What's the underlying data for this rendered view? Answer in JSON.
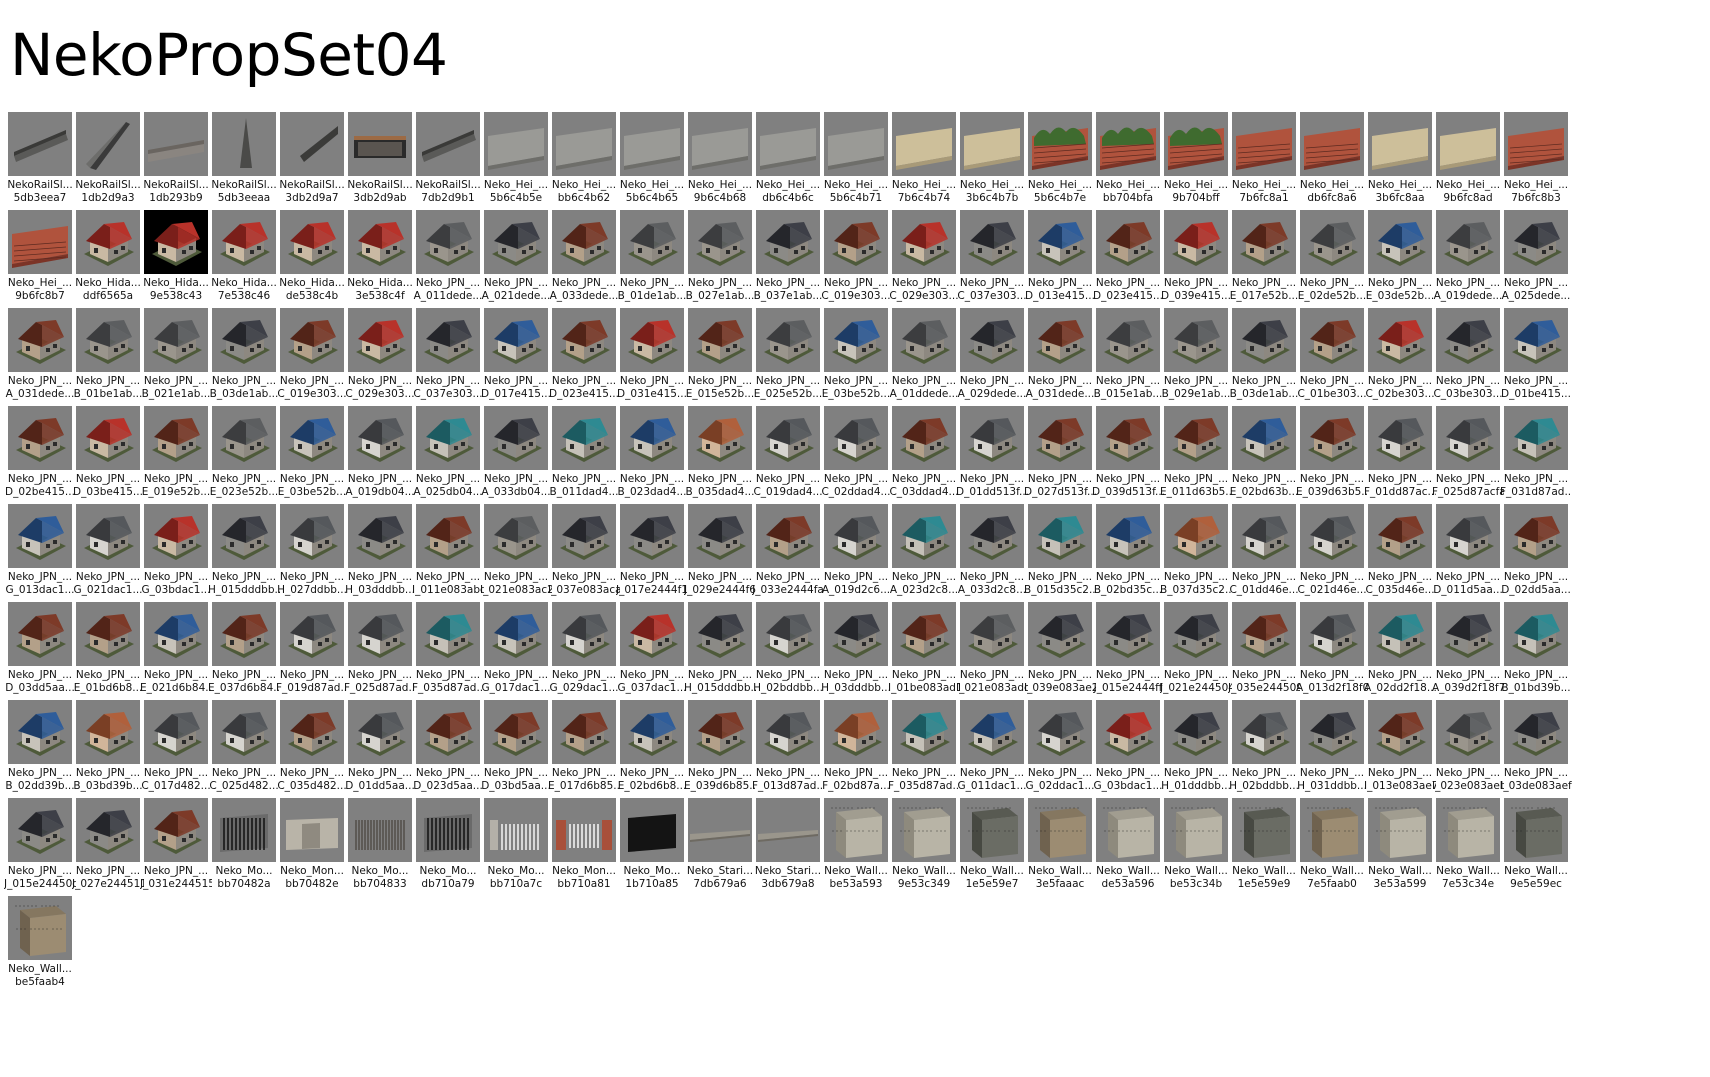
{
  "title": "NekoPropSet04",
  "colors": {
    "thumb_bg": "#808080",
    "label_text": "#111111",
    "page_bg": "#ffffff"
  },
  "items": [
    {
      "name": "NekoRailSl...",
      "id": "5db3eea7",
      "icon": "rail-slope"
    },
    {
      "name": "NekoRailSl...",
      "id": "1db2d9a3",
      "icon": "rail-slope"
    },
    {
      "name": "NekoRailSl...",
      "id": "1db293b9",
      "icon": "rail-slope"
    },
    {
      "name": "NekoRailSl...",
      "id": "5db3eeaa",
      "icon": "rail-slope"
    },
    {
      "name": "NekoRailSl...",
      "id": "3db2d9a7",
      "icon": "rail-slope"
    },
    {
      "name": "NekoRailSl...",
      "id": "3db2d9ab",
      "icon": "rail-slope"
    },
    {
      "name": "NekoRailSl...",
      "id": "7db2d9b1",
      "icon": "rail-slope"
    },
    {
      "name": "Neko_Hei_...",
      "id": "5b6c4b5e",
      "icon": "wall-concrete"
    },
    {
      "name": "Neko_Hei_...",
      "id": "bb6c4b62",
      "icon": "wall-concrete"
    },
    {
      "name": "Neko_Hei_...",
      "id": "5b6c4b65",
      "icon": "wall-concrete"
    },
    {
      "name": "Neko_Hei_...",
      "id": "9b6c4b68",
      "icon": "wall-concrete"
    },
    {
      "name": "Neko_Hei_...",
      "id": "db6c4b6c",
      "icon": "wall-concrete"
    },
    {
      "name": "Neko_Hei_...",
      "id": "5b6c4b71",
      "icon": "wall-concrete"
    },
    {
      "name": "Neko_Hei_...",
      "id": "7b6c4b74",
      "icon": "wall-stone"
    },
    {
      "name": "Neko_Hei_...",
      "id": "3b6c4b7b",
      "icon": "wall-stone"
    },
    {
      "name": "Neko_Hei_...",
      "id": "5b6c4b7e",
      "icon": "wall-hedge"
    },
    {
      "name": "Neko_Hei_...",
      "id": "bb704bfa",
      "icon": "wall-hedge"
    },
    {
      "name": "Neko_Hei_...",
      "id": "9b704bff",
      "icon": "wall-hedge"
    },
    {
      "name": "Neko_Hei_...",
      "id": "7b6fc8a1",
      "icon": "wall-brick"
    },
    {
      "name": "Neko_Hei_...",
      "id": "db6fc8a6",
      "icon": "wall-brick"
    },
    {
      "name": "Neko_Hei_...",
      "id": "3b6fc8aa",
      "icon": "wall-stone"
    },
    {
      "name": "Neko_Hei_...",
      "id": "9b6fc8ad",
      "icon": "wall-stone"
    },
    {
      "name": "Neko_Hei_...",
      "id": "7b6fc8b3",
      "icon": "wall-brick"
    },
    {
      "name": "Neko_Hei_...",
      "id": "9b6fc8b7",
      "icon": "wall-brick"
    },
    {
      "name": "Neko_Hida...",
      "id": "ddf6565a",
      "icon": "house-red"
    },
    {
      "name": "Neko_Hida...",
      "id": "9e538c43",
      "icon": "house-red"
    },
    {
      "name": "Neko_Hida...",
      "id": "7e538c46",
      "icon": "house-red"
    },
    {
      "name": "Neko_Hida...",
      "id": "de538c4b",
      "icon": "house-red"
    },
    {
      "name": "Neko_Hida...",
      "id": "3e538c4f",
      "icon": "house-red"
    },
    {
      "name": "Neko_JPN_...",
      "id": "A_011dede...",
      "icon": "house-grey"
    },
    {
      "name": "Neko_JPN_...",
      "id": "A_021dede...",
      "icon": "house-dark"
    },
    {
      "name": "Neko_JPN_...",
      "id": "A_033dede...",
      "icon": "house-brown"
    },
    {
      "name": "Neko_JPN_...",
      "id": "B_01de1ab...",
      "icon": "house-grey"
    },
    {
      "name": "Neko_JPN_...",
      "id": "B_027e1ab...",
      "icon": "house-grey"
    },
    {
      "name": "Neko_JPN_...",
      "id": "B_037e1ab...",
      "icon": "house-dark"
    },
    {
      "name": "Neko_JPN_...",
      "id": "C_019e303...",
      "icon": "house-brown"
    },
    {
      "name": "Neko_JPN_...",
      "id": "C_029e303...",
      "icon": "house-red"
    },
    {
      "name": "Neko_JPN_...",
      "id": "C_037e303...",
      "icon": "house-dark"
    },
    {
      "name": "Neko_JPN_...",
      "id": "D_013e415...",
      "icon": "house-blue"
    },
    {
      "name": "Neko_JPN_...",
      "id": "D_023e415...",
      "icon": "house-brown"
    },
    {
      "name": "Neko_JPN_...",
      "id": "D_039e415...",
      "icon": "house-red"
    },
    {
      "name": "Neko_JPN_...",
      "id": "E_017e52b...",
      "icon": "house-brown"
    },
    {
      "name": "Neko_JPN_...",
      "id": "E_02de52b...",
      "icon": "house-grey"
    },
    {
      "name": "Neko_JPN_...",
      "id": "E_03de52b...",
      "icon": "house-blue"
    },
    {
      "name": "Neko_JPN_...",
      "id": "A_019dede...",
      "icon": "house-grey"
    },
    {
      "name": "Neko_JPN_...",
      "id": "A_025dede...",
      "icon": "house-dark"
    },
    {
      "name": "Neko_JPN_...",
      "id": "A_031dede...",
      "icon": "house-brown"
    },
    {
      "name": "Neko_JPN_...",
      "id": "B_01be1ab...",
      "icon": "house-grey"
    },
    {
      "name": "Neko_JPN_...",
      "id": "B_021e1ab...",
      "icon": "house-grey"
    },
    {
      "name": "Neko_JPN_...",
      "id": "B_03de1ab...",
      "icon": "house-dark"
    },
    {
      "name": "Neko_JPN_...",
      "id": "C_019e303...",
      "icon": "house-brown"
    },
    {
      "name": "Neko_JPN_...",
      "id": "C_029e303...",
      "icon": "house-red"
    },
    {
      "name": "Neko_JPN_...",
      "id": "C_037e303...",
      "icon": "house-dark"
    },
    {
      "name": "Neko_JPN_...",
      "id": "D_017e415...",
      "icon": "house-blue"
    },
    {
      "name": "Neko_JPN_...",
      "id": "D_023e415...",
      "icon": "house-brown"
    },
    {
      "name": "Neko_JPN_...",
      "id": "D_031e415...",
      "icon": "house-red"
    },
    {
      "name": "Neko_JPN_...",
      "id": "E_015e52b...",
      "icon": "house-brown"
    },
    {
      "name": "Neko_JPN_...",
      "id": "E_025e52b...",
      "icon": "house-grey"
    },
    {
      "name": "Neko_JPN_...",
      "id": "E_03be52b...",
      "icon": "house-blue"
    },
    {
      "name": "Neko_JPN_...",
      "id": "A_01ddede...",
      "icon": "house-grey"
    },
    {
      "name": "Neko_JPN_...",
      "id": "A_029dede...",
      "icon": "house-dark"
    },
    {
      "name": "Neko_JPN_...",
      "id": "A_031dede...",
      "icon": "house-brown"
    },
    {
      "name": "Neko_JPN_...",
      "id": "B_015e1ab...",
      "icon": "house-grey"
    },
    {
      "name": "Neko_JPN_...",
      "id": "B_029e1ab...",
      "icon": "house-grey"
    },
    {
      "name": "Neko_JPN_...",
      "id": "B_03de1ab...",
      "icon": "house-dark"
    },
    {
      "name": "Neko_JPN_...",
      "id": "C_01be303...",
      "icon": "house-brown"
    },
    {
      "name": "Neko_JPN_...",
      "id": "C_02be303...",
      "icon": "house-red"
    },
    {
      "name": "Neko_JPN_...",
      "id": "C_03be303...",
      "icon": "house-dark"
    },
    {
      "name": "Neko_JPN_...",
      "id": "D_01be415...",
      "icon": "house-blue"
    },
    {
      "name": "Neko_JPN_...",
      "id": "D_02be415...",
      "icon": "house-brown"
    },
    {
      "name": "Neko_JPN_...",
      "id": "D_03be415...",
      "icon": "house-red"
    },
    {
      "name": "Neko_JPN_...",
      "id": "E_019e52b...",
      "icon": "house-brown"
    },
    {
      "name": "Neko_JPN_...",
      "id": "E_023e52b...",
      "icon": "house-grey"
    },
    {
      "name": "Neko_JPN_...",
      "id": "E_03be52b...",
      "icon": "house-blue"
    },
    {
      "name": "Neko_JPN_...",
      "id": "A_019db04...",
      "icon": "house-white"
    },
    {
      "name": "Neko_JPN_...",
      "id": "A_025db04...",
      "icon": "house-teal"
    },
    {
      "name": "Neko_JPN_...",
      "id": "A_033db04...",
      "icon": "house-dark"
    },
    {
      "name": "Neko_JPN_...",
      "id": "B_011dad4...",
      "icon": "house-teal"
    },
    {
      "name": "Neko_JPN_...",
      "id": "B_023dad4...",
      "icon": "house-blue"
    },
    {
      "name": "Neko_JPN_...",
      "id": "B_035dad4...",
      "icon": "house-orange"
    },
    {
      "name": "Neko_JPN_...",
      "id": "C_019dad4...",
      "icon": "house-white"
    },
    {
      "name": "Neko_JPN_...",
      "id": "C_02ddad4...",
      "icon": "house-white"
    },
    {
      "name": "Neko_JPN_...",
      "id": "C_03ddad4...",
      "icon": "house-brown"
    },
    {
      "name": "Neko_JPN_...",
      "id": "D_01dd513f...",
      "icon": "house-white"
    },
    {
      "name": "Neko_JPN_...",
      "id": "D_027d513f...",
      "icon": "house-brown"
    },
    {
      "name": "Neko_JPN_...",
      "id": "D_039d513f...",
      "icon": "house-brown"
    },
    {
      "name": "Neko_JPN_...",
      "id": "E_011d63b5...",
      "icon": "house-brown"
    },
    {
      "name": "Neko_JPN_...",
      "id": "E_02bd63b...",
      "icon": "house-blue"
    },
    {
      "name": "Neko_JPN_...",
      "id": "E_039d63b5...",
      "icon": "house-brown"
    },
    {
      "name": "Neko_JPN_...",
      "id": "F_01dd87ac...",
      "icon": "house-white"
    },
    {
      "name": "Neko_JPN_...",
      "id": "F_025d87acfa",
      "icon": "house-white"
    },
    {
      "name": "Neko_JPN_...",
      "id": "F_031d87ad...",
      "icon": "house-teal"
    },
    {
      "name": "Neko_JPN_...",
      "id": "G_013dac1...",
      "icon": "house-blue"
    },
    {
      "name": "Neko_JPN_...",
      "id": "G_021dac1...",
      "icon": "house-white"
    },
    {
      "name": "Neko_JPN_...",
      "id": "G_03bdac1...",
      "icon": "house-red"
    },
    {
      "name": "Neko_JPN_...",
      "id": "H_015dddbb...",
      "icon": "house-dark"
    },
    {
      "name": "Neko_JPN_...",
      "id": "H_027ddbb...",
      "icon": "house-white"
    },
    {
      "name": "Neko_JPN_...",
      "id": "H_03dddbb...",
      "icon": "house-dark"
    },
    {
      "name": "Neko_JPN_...",
      "id": "I_011e083abd",
      "icon": "house-brown"
    },
    {
      "name": "Neko_JPN_...",
      "id": "I_021e083ac2",
      "icon": "house-grey"
    },
    {
      "name": "Neko_JPN_...",
      "id": "I_037e083aca",
      "icon": "house-dark"
    },
    {
      "name": "Neko_JPN_...",
      "id": "J_017e2444f1",
      "icon": "house-dark"
    },
    {
      "name": "Neko_JPN_...",
      "id": "J_029e2444f6",
      "icon": "house-dark"
    },
    {
      "name": "Neko_JPN_...",
      "id": "J_033e2444fa",
      "icon": "house-brown"
    },
    {
      "name": "Neko_JPN_...",
      "id": "A_019d2c6...",
      "icon": "house-white"
    },
    {
      "name": "Neko_JPN_...",
      "id": "A_023d2c8...",
      "icon": "house-teal"
    },
    {
      "name": "Neko_JPN_...",
      "id": "A_033d2c8...",
      "icon": "house-dark"
    },
    {
      "name": "Neko_JPN_...",
      "id": "B_015d35c2...",
      "icon": "house-teal"
    },
    {
      "name": "Neko_JPN_...",
      "id": "B_02bd35c...",
      "icon": "house-blue"
    },
    {
      "name": "Neko_JPN_...",
      "id": "B_037d35c2...",
      "icon": "house-orange"
    },
    {
      "name": "Neko_JPN_...",
      "id": "C_01dd46e...",
      "icon": "house-white"
    },
    {
      "name": "Neko_JPN_...",
      "id": "C_021d46e...",
      "icon": "house-white"
    },
    {
      "name": "Neko_JPN_...",
      "id": "C_035d46e...",
      "icon": "house-brown"
    },
    {
      "name": "Neko_JPN_...",
      "id": "D_011d5aa...",
      "icon": "house-white"
    },
    {
      "name": "Neko_JPN_...",
      "id": "D_02dd5aa...",
      "icon": "house-brown"
    },
    {
      "name": "Neko_JPN_...",
      "id": "D_03dd5aa...",
      "icon": "house-brown"
    },
    {
      "name": "Neko_JPN_...",
      "id": "E_01bd6b8...",
      "icon": "house-brown"
    },
    {
      "name": "Neko_JPN_...",
      "id": "E_021d6b84...",
      "icon": "house-blue"
    },
    {
      "name": "Neko_JPN_...",
      "id": "E_037d6b84...",
      "icon": "house-brown"
    },
    {
      "name": "Neko_JPN_...",
      "id": "F_019d87ad...",
      "icon": "house-white"
    },
    {
      "name": "Neko_JPN_...",
      "id": "F_025d87ad...",
      "icon": "house-white"
    },
    {
      "name": "Neko_JPN_...",
      "id": "F_035d87ad...",
      "icon": "house-teal"
    },
    {
      "name": "Neko_JPN_...",
      "id": "G_017dac1...",
      "icon": "house-blue"
    },
    {
      "name": "Neko_JPN_...",
      "id": "G_029dac1...",
      "icon": "house-white"
    },
    {
      "name": "Neko_JPN_...",
      "id": "G_037dac1...",
      "icon": "house-red"
    },
    {
      "name": "Neko_JPN_...",
      "id": "H_015dddbb...",
      "icon": "house-dark"
    },
    {
      "name": "Neko_JPN_...",
      "id": "H_02bddbb...",
      "icon": "house-white"
    },
    {
      "name": "Neko_JPN_...",
      "id": "H_03dddbb...",
      "icon": "house-dark"
    },
    {
      "name": "Neko_JPN_...",
      "id": "I_01be083ad1",
      "icon": "house-brown"
    },
    {
      "name": "Neko_JPN_...",
      "id": "I_021e083adc",
      "icon": "house-grey"
    },
    {
      "name": "Neko_JPN_...",
      "id": "I_039e083ae2",
      "icon": "house-dark"
    },
    {
      "name": "Neko_JPN_...",
      "id": "J_015e2444ff",
      "icon": "house-dark"
    },
    {
      "name": "Neko_JPN_...",
      "id": "J_021e244504",
      "icon": "house-dark"
    },
    {
      "name": "Neko_JPN_...",
      "id": "J_035e244509",
      "icon": "house-brown"
    },
    {
      "name": "Neko_JPN_...",
      "id": "A_013d2f18f0",
      "icon": "house-white"
    },
    {
      "name": "Neko_JPN_...",
      "id": "A_02dd2f18...",
      "icon": "house-teal"
    },
    {
      "name": "Neko_JPN_...",
      "id": "A_039d2f18f7",
      "icon": "house-dark"
    },
    {
      "name": "Neko_JPN_...",
      "id": "B_01bd39b...",
      "icon": "house-teal"
    },
    {
      "name": "Neko_JPN_...",
      "id": "B_02dd39b...",
      "icon": "house-blue"
    },
    {
      "name": "Neko_JPN_...",
      "id": "B_03bd39b...",
      "icon": "house-orange"
    },
    {
      "name": "Neko_JPN_...",
      "id": "C_017d482...",
      "icon": "house-white"
    },
    {
      "name": "Neko_JPN_...",
      "id": "C_025d482...",
      "icon": "house-white"
    },
    {
      "name": "Neko_JPN_...",
      "id": "C_035d482...",
      "icon": "house-brown"
    },
    {
      "name": "Neko_JPN_...",
      "id": "D_01dd5aa...",
      "icon": "house-white"
    },
    {
      "name": "Neko_JPN_...",
      "id": "D_023d5aa...",
      "icon": "house-brown"
    },
    {
      "name": "Neko_JPN_...",
      "id": "D_03bd5aa...",
      "icon": "house-brown"
    },
    {
      "name": "Neko_JPN_...",
      "id": "E_017d6b85...",
      "icon": "house-brown"
    },
    {
      "name": "Neko_JPN_...",
      "id": "E_02bd6b8...",
      "icon": "house-blue"
    },
    {
      "name": "Neko_JPN_...",
      "id": "E_039d6b85...",
      "icon": "house-brown"
    },
    {
      "name": "Neko_JPN_...",
      "id": "F_013d87ad...",
      "icon": "house-white"
    },
    {
      "name": "Neko_JPN_...",
      "id": "F_02bd87a...",
      "icon": "house-orange"
    },
    {
      "name": "Neko_JPN_...",
      "id": "F_035d87ad...",
      "icon": "house-teal"
    },
    {
      "name": "Neko_JPN_...",
      "id": "G_011dac1...",
      "icon": "house-blue"
    },
    {
      "name": "Neko_JPN_...",
      "id": "G_02ddac1...",
      "icon": "house-white"
    },
    {
      "name": "Neko_JPN_...",
      "id": "G_03bdac1...",
      "icon": "house-red"
    },
    {
      "name": "Neko_JPN_...",
      "id": "H_01dddbb...",
      "icon": "house-dark"
    },
    {
      "name": "Neko_JPN_...",
      "id": "H_02bddbb...",
      "icon": "house-white"
    },
    {
      "name": "Neko_JPN_...",
      "id": "H_031ddbb...",
      "icon": "house-dark"
    },
    {
      "name": "Neko_JPN_...",
      "id": "I_013e083ae7",
      "icon": "house-brown"
    },
    {
      "name": "Neko_JPN_...",
      "id": "I_023e083aeb",
      "icon": "house-grey"
    },
    {
      "name": "Neko_JPN_...",
      "id": "I_03de083aef",
      "icon": "house-dark"
    },
    {
      "name": "Neko_JPN_...",
      "id": "J_015e24450d",
      "icon": "house-dark"
    },
    {
      "name": "Neko_JPN_...",
      "id": "J_027e244511",
      "icon": "house-dark"
    },
    {
      "name": "Neko_JPN_...",
      "id": "J_031e244515",
      "icon": "house-brown"
    },
    {
      "name": "Neko_Mo...",
      "id": "bb70482a",
      "icon": "gate-iron"
    },
    {
      "name": "Neko_Mon...",
      "id": "bb70482e",
      "icon": "gate-stone"
    },
    {
      "name": "Neko_Mo...",
      "id": "bb704833",
      "icon": "gate-slats"
    },
    {
      "name": "Neko_Mo...",
      "id": "db710a79",
      "icon": "gate-iron"
    },
    {
      "name": "Neko_Mo...",
      "id": "bb710a7c",
      "icon": "gate-white"
    },
    {
      "name": "Neko_Mon...",
      "id": "bb710a81",
      "icon": "gate-brick-white"
    },
    {
      "name": "Neko_Mo...",
      "id": "1b710a85",
      "icon": "gate-black"
    },
    {
      "name": "Neko_Stari...",
      "id": "7db679a6",
      "icon": "stair-flat"
    },
    {
      "name": "Neko_Stari...",
      "id": "3db679a8",
      "icon": "stair-flat"
    },
    {
      "name": "Neko_Wall...",
      "id": "be53a593",
      "icon": "wall-cube-light"
    },
    {
      "name": "Neko_Wall...",
      "id": "9e53c349",
      "icon": "wall-cube-light"
    },
    {
      "name": "Neko_Wall...",
      "id": "1e5e59e7",
      "icon": "wall-cube-dark"
    },
    {
      "name": "Neko_Wall...",
      "id": "3e5faaac",
      "icon": "wall-cube-brown"
    },
    {
      "name": "Neko_Wall...",
      "id": "de53a596",
      "icon": "wall-cube-light"
    },
    {
      "name": "Neko_Wall...",
      "id": "be53c34b",
      "icon": "wall-cube-light"
    },
    {
      "name": "Neko_Wall...",
      "id": "1e5e59e9",
      "icon": "wall-cube-dark"
    },
    {
      "name": "Neko_Wall...",
      "id": "7e5faab0",
      "icon": "wall-cube-brown"
    },
    {
      "name": "Neko_Wall...",
      "id": "3e53a599",
      "icon": "wall-cube-light"
    },
    {
      "name": "Neko_Wall...",
      "id": "7e53c34e",
      "icon": "wall-cube-light"
    },
    {
      "name": "Neko_Wall...",
      "id": "9e5e59ec",
      "icon": "wall-cube-dark"
    },
    {
      "name": "Neko_Wall...",
      "id": "be5faab4",
      "icon": "wall-cube-brown"
    }
  ]
}
